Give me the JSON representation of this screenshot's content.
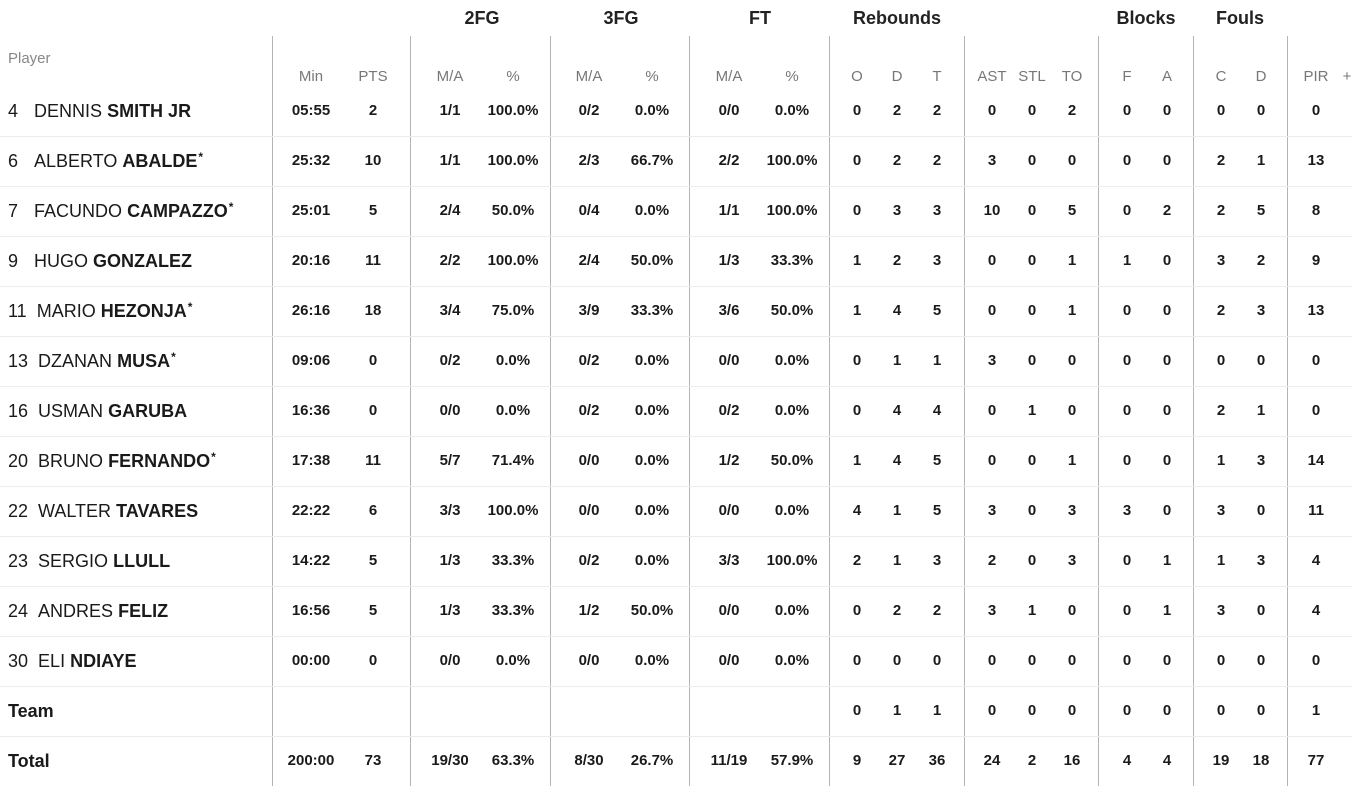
{
  "group_headers": {
    "fg2": "2FG",
    "fg3": "3FG",
    "ft": "FT",
    "rebounds": "Rebounds",
    "blocks": "Blocks",
    "fouls": "Fouls"
  },
  "sub_headers": {
    "player": "Player",
    "min": "Min",
    "pts": "PTS",
    "fg2_ma": "M/A",
    "fg2_pct": "%",
    "fg3_ma": "M/A",
    "fg3_pct": "%",
    "ft_ma": "M/A",
    "ft_pct": "%",
    "reb_o": "O",
    "reb_d": "D",
    "reb_t": "T",
    "ast": "AST",
    "stl": "STL",
    "to": "TO",
    "blk_f": "F",
    "blk_a": "A",
    "foul_c": "C",
    "foul_d": "D",
    "pir": "PIR",
    "more": "+"
  },
  "players": [
    {
      "num": "4",
      "first": "DENNIS",
      "last": "SMITH JR",
      "starter": "",
      "stats": [
        "05:55",
        "2",
        "1/1",
        "100.0%",
        "0/2",
        "0.0%",
        "0/0",
        "0.0%",
        "0",
        "2",
        "2",
        "0",
        "0",
        "2",
        "0",
        "0",
        "0",
        "0",
        "0"
      ]
    },
    {
      "num": "6",
      "first": "ALBERTO",
      "last": "ABALDE",
      "starter": "*",
      "stats": [
        "25:32",
        "10",
        "1/1",
        "100.0%",
        "2/3",
        "66.7%",
        "2/2",
        "100.0%",
        "0",
        "2",
        "2",
        "3",
        "0",
        "0",
        "0",
        "0",
        "2",
        "1",
        "13"
      ]
    },
    {
      "num": "7",
      "first": "FACUNDO",
      "last": "CAMPAZZO",
      "starter": "*",
      "stats": [
        "25:01",
        "5",
        "2/4",
        "50.0%",
        "0/4",
        "0.0%",
        "1/1",
        "100.0%",
        "0",
        "3",
        "3",
        "10",
        "0",
        "5",
        "0",
        "2",
        "2",
        "5",
        "8"
      ]
    },
    {
      "num": "9",
      "first": "HUGO",
      "last": "GONZALEZ",
      "starter": "",
      "stats": [
        "20:16",
        "11",
        "2/2",
        "100.0%",
        "2/4",
        "50.0%",
        "1/3",
        "33.3%",
        "1",
        "2",
        "3",
        "0",
        "0",
        "1",
        "1",
        "0",
        "3",
        "2",
        "9"
      ]
    },
    {
      "num": "11",
      "first": "MARIO",
      "last": "HEZONJA",
      "starter": "*",
      "stats": [
        "26:16",
        "18",
        "3/4",
        "75.0%",
        "3/9",
        "33.3%",
        "3/6",
        "50.0%",
        "1",
        "4",
        "5",
        "0",
        "0",
        "1",
        "0",
        "0",
        "2",
        "3",
        "13"
      ]
    },
    {
      "num": "13",
      "first": "DZANAN",
      "last": "MUSA",
      "starter": "*",
      "stats": [
        "09:06",
        "0",
        "0/2",
        "0.0%",
        "0/2",
        "0.0%",
        "0/0",
        "0.0%",
        "0",
        "1",
        "1",
        "3",
        "0",
        "0",
        "0",
        "0",
        "0",
        "0",
        "0"
      ]
    },
    {
      "num": "16",
      "first": "USMAN",
      "last": "GARUBA",
      "starter": "",
      "stats": [
        "16:36",
        "0",
        "0/0",
        "0.0%",
        "0/2",
        "0.0%",
        "0/2",
        "0.0%",
        "0",
        "4",
        "4",
        "0",
        "1",
        "0",
        "0",
        "0",
        "2",
        "1",
        "0"
      ]
    },
    {
      "num": "20",
      "first": "BRUNO",
      "last": "FERNANDO",
      "starter": "*",
      "stats": [
        "17:38",
        "11",
        "5/7",
        "71.4%",
        "0/0",
        "0.0%",
        "1/2",
        "50.0%",
        "1",
        "4",
        "5",
        "0",
        "0",
        "1",
        "0",
        "0",
        "1",
        "3",
        "14"
      ]
    },
    {
      "num": "22",
      "first": "WALTER",
      "last": "TAVARES",
      "starter": "",
      "stats": [
        "22:22",
        "6",
        "3/3",
        "100.0%",
        "0/0",
        "0.0%",
        "0/0",
        "0.0%",
        "4",
        "1",
        "5",
        "3",
        "0",
        "3",
        "3",
        "0",
        "3",
        "0",
        "11"
      ]
    },
    {
      "num": "23",
      "first": "SERGIO",
      "last": "LLULL",
      "starter": "",
      "stats": [
        "14:22",
        "5",
        "1/3",
        "33.3%",
        "0/2",
        "0.0%",
        "3/3",
        "100.0%",
        "2",
        "1",
        "3",
        "2",
        "0",
        "3",
        "0",
        "1",
        "1",
        "3",
        "4"
      ]
    },
    {
      "num": "24",
      "first": "ANDRES",
      "last": "FELIZ",
      "starter": "",
      "stats": [
        "16:56",
        "5",
        "1/3",
        "33.3%",
        "1/2",
        "50.0%",
        "0/0",
        "0.0%",
        "0",
        "2",
        "2",
        "3",
        "1",
        "0",
        "0",
        "1",
        "3",
        "0",
        "4"
      ]
    },
    {
      "num": "30",
      "first": "ELI",
      "last": "NDIAYE",
      "starter": "",
      "stats": [
        "00:00",
        "0",
        "0/0",
        "0.0%",
        "0/0",
        "0.0%",
        "0/0",
        "0.0%",
        "0",
        "0",
        "0",
        "0",
        "0",
        "0",
        "0",
        "0",
        "0",
        "0",
        "0"
      ]
    }
  ],
  "team_row": {
    "label": "Team",
    "stats": [
      "",
      "",
      "",
      "",
      "",
      "",
      "",
      "",
      "0",
      "1",
      "1",
      "0",
      "0",
      "0",
      "0",
      "0",
      "0",
      "0",
      "1"
    ]
  },
  "total_row": {
    "label": "Total",
    "stats": [
      "200:00",
      "73",
      "19/30",
      "63.3%",
      "8/30",
      "26.7%",
      "11/19",
      "57.9%",
      "9",
      "27",
      "36",
      "24",
      "2",
      "16",
      "4",
      "4",
      "19",
      "18",
      "77"
    ]
  }
}
